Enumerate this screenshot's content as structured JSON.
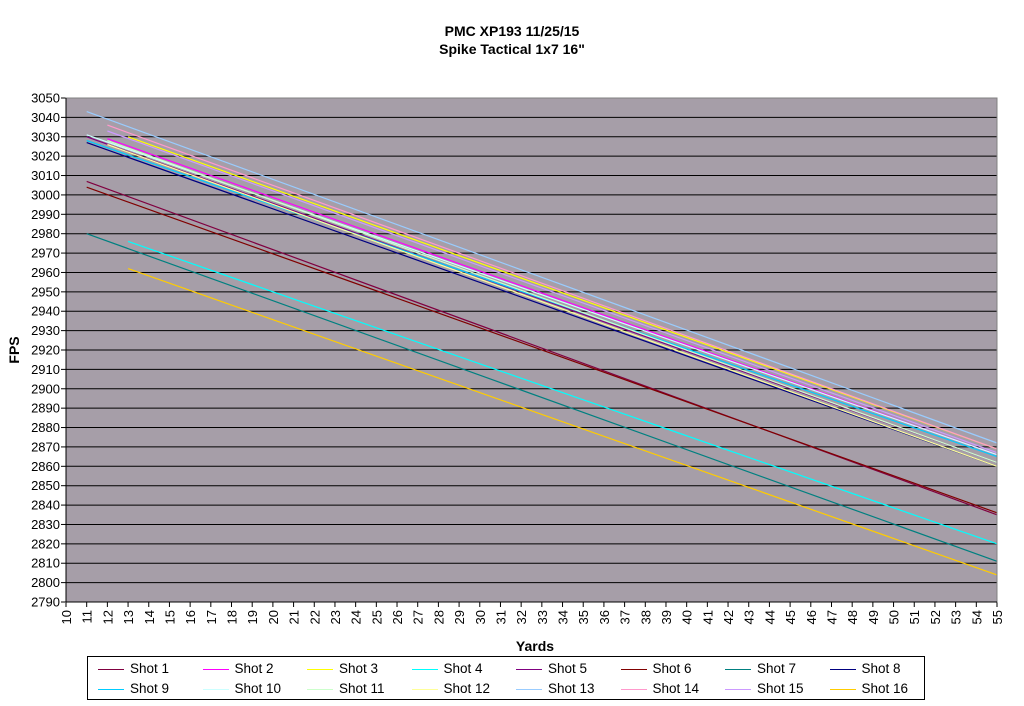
{
  "title_lines": [
    "PMC XP193 11/25/15",
    "Spike Tactical 1x7 16\""
  ],
  "chart_data": {
    "type": "line",
    "title": "PMC XP193 11/25/15 / Spike Tactical 1x7 16\"",
    "xlabel": "Yards",
    "ylabel": "FPS",
    "xlim": [
      10,
      55
    ],
    "ylim": [
      2790,
      3050
    ],
    "ytick_step": 10,
    "x_ticks": [
      10,
      11,
      12,
      13,
      14,
      15,
      16,
      17,
      18,
      19,
      20,
      21,
      22,
      23,
      24,
      25,
      26,
      27,
      28,
      29,
      30,
      31,
      32,
      33,
      34,
      35,
      36,
      37,
      38,
      39,
      40,
      41,
      42,
      43,
      44,
      45,
      46,
      47,
      48,
      49,
      50,
      51,
      52,
      53,
      54,
      55
    ],
    "y_ticks": [
      2790,
      2800,
      2810,
      2820,
      2830,
      2840,
      2850,
      2860,
      2870,
      2880,
      2890,
      2900,
      2910,
      2920,
      2930,
      2940,
      2950,
      2960,
      2970,
      2980,
      2990,
      3000,
      3010,
      3020,
      3030,
      3040,
      3050
    ],
    "grid": true,
    "plot_background": "#a69ea8",
    "legend_position": "bottom",
    "series": [
      {
        "name": "Shot 1",
        "color": "#800040",
        "x": [
          11,
          55
        ],
        "values": [
          3007,
          2835
        ]
      },
      {
        "name": "Shot 2",
        "color": "#ff00ff",
        "x": [
          12,
          55
        ],
        "values": [
          3029,
          2866
        ]
      },
      {
        "name": "Shot 3",
        "color": "#ffff00",
        "x": [
          13,
          55
        ],
        "values": [
          3030,
          2869
        ]
      },
      {
        "name": "Shot 4",
        "color": "#00ffff",
        "x": [
          13,
          55
        ],
        "values": [
          2976,
          2820
        ]
      },
      {
        "name": "Shot 5",
        "color": "#800080",
        "x": [
          11,
          55
        ],
        "values": [
          3030,
          2862
        ]
      },
      {
        "name": "Shot 6",
        "color": "#800000",
        "x": [
          11,
          55
        ],
        "values": [
          3004,
          2836
        ]
      },
      {
        "name": "Shot 7",
        "color": "#008080",
        "x": [
          11,
          55
        ],
        "values": [
          2980,
          2811
        ]
      },
      {
        "name": "Shot 8",
        "color": "#000080",
        "x": [
          11,
          55
        ],
        "values": [
          3027,
          2860
        ]
      },
      {
        "name": "Shot 9",
        "color": "#00ccff",
        "x": [
          11,
          55
        ],
        "values": [
          3028,
          2865
        ]
      },
      {
        "name": "Shot 10",
        "color": "#ccffff",
        "x": [
          11,
          55
        ],
        "values": [
          3031,
          2866
        ]
      },
      {
        "name": "Shot 11",
        "color": "#ccffcc",
        "x": [
          12,
          55
        ],
        "values": [
          3028,
          2862
        ]
      },
      {
        "name": "Shot 12",
        "color": "#ffff99",
        "x": [
          12,
          55
        ],
        "values": [
          3026,
          2860
        ]
      },
      {
        "name": "Shot 13",
        "color": "#99ccff",
        "x": [
          11,
          55
        ],
        "values": [
          3043,
          2872
        ]
      },
      {
        "name": "Shot 14",
        "color": "#ff99cc",
        "x": [
          12,
          55
        ],
        "values": [
          3036,
          2869
        ]
      },
      {
        "name": "Shot 15",
        "color": "#cc99ff",
        "x": [
          12,
          55
        ],
        "values": [
          3033,
          2867
        ]
      },
      {
        "name": "Shot 16",
        "color": "#ffcc00",
        "x": [
          13,
          55
        ],
        "values": [
          2962,
          2804
        ]
      }
    ]
  }
}
